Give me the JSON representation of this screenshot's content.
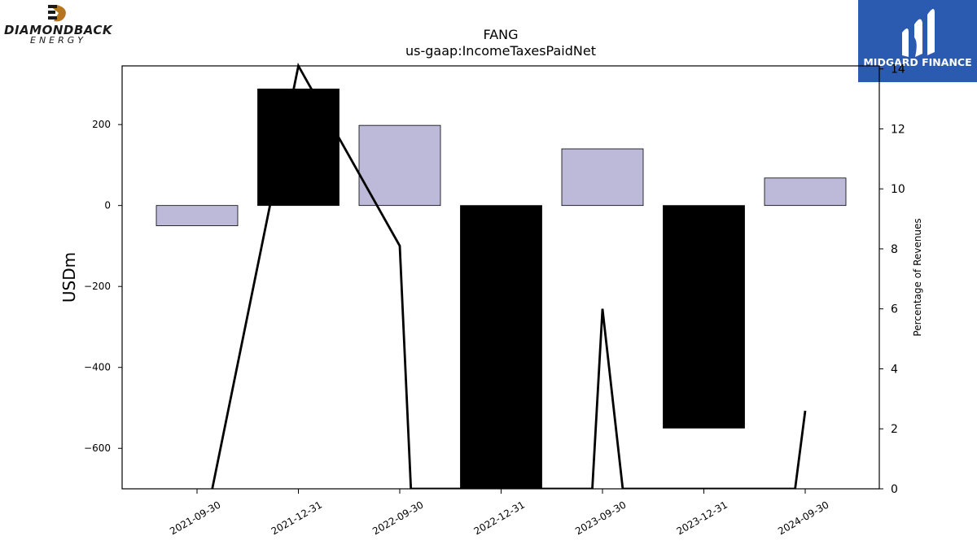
{
  "logos": {
    "left": {
      "word": "DIAMONDBACK",
      "sub": "ENERGY",
      "accent": "#b5761f"
    },
    "right": {
      "text": "MIDGARD FINANCE",
      "bg": "#2b5bb0"
    }
  },
  "chart_data": {
    "type": "bar",
    "title": "FANG",
    "subtitle": "us-gaap:IncomeTaxesPaidNet",
    "ylabel": "USDm",
    "y2label": "Percentage of Revenues",
    "categories": [
      "2021-09-30",
      "2021-12-31",
      "2022-09-30",
      "2022-12-31",
      "2023-09-30",
      "2023-12-31",
      "2024-09-30"
    ],
    "ylim": [
      -700,
      345
    ],
    "yticks": [
      200,
      0,
      -200,
      -400,
      -600
    ],
    "y2lim": [
      0,
      14.1
    ],
    "y2ticks": [
      0,
      2,
      4,
      6,
      8,
      10,
      12,
      14
    ],
    "series": [
      {
        "type": "bar",
        "values": [
          -50,
          288,
          198,
          -700,
          140,
          -550,
          68
        ],
        "colors": [
          "#bdb9d9",
          "#000000",
          "#bdb9d9",
          "#000000",
          "#bdb9d9",
          "#000000",
          "#bdb9d9"
        ]
      },
      {
        "type": "line",
        "axis": "right",
        "color": "#000000",
        "points": [
          [
            0.15,
            0
          ],
          [
            1.0,
            14.4
          ],
          [
            2.0,
            8.1
          ],
          [
            2.11,
            0
          ],
          [
            3.9,
            0
          ],
          [
            4.0,
            6.0
          ],
          [
            4.2,
            0
          ],
          [
            5.9,
            0
          ],
          [
            6.0,
            2.6
          ]
        ]
      }
    ],
    "grid": false
  }
}
